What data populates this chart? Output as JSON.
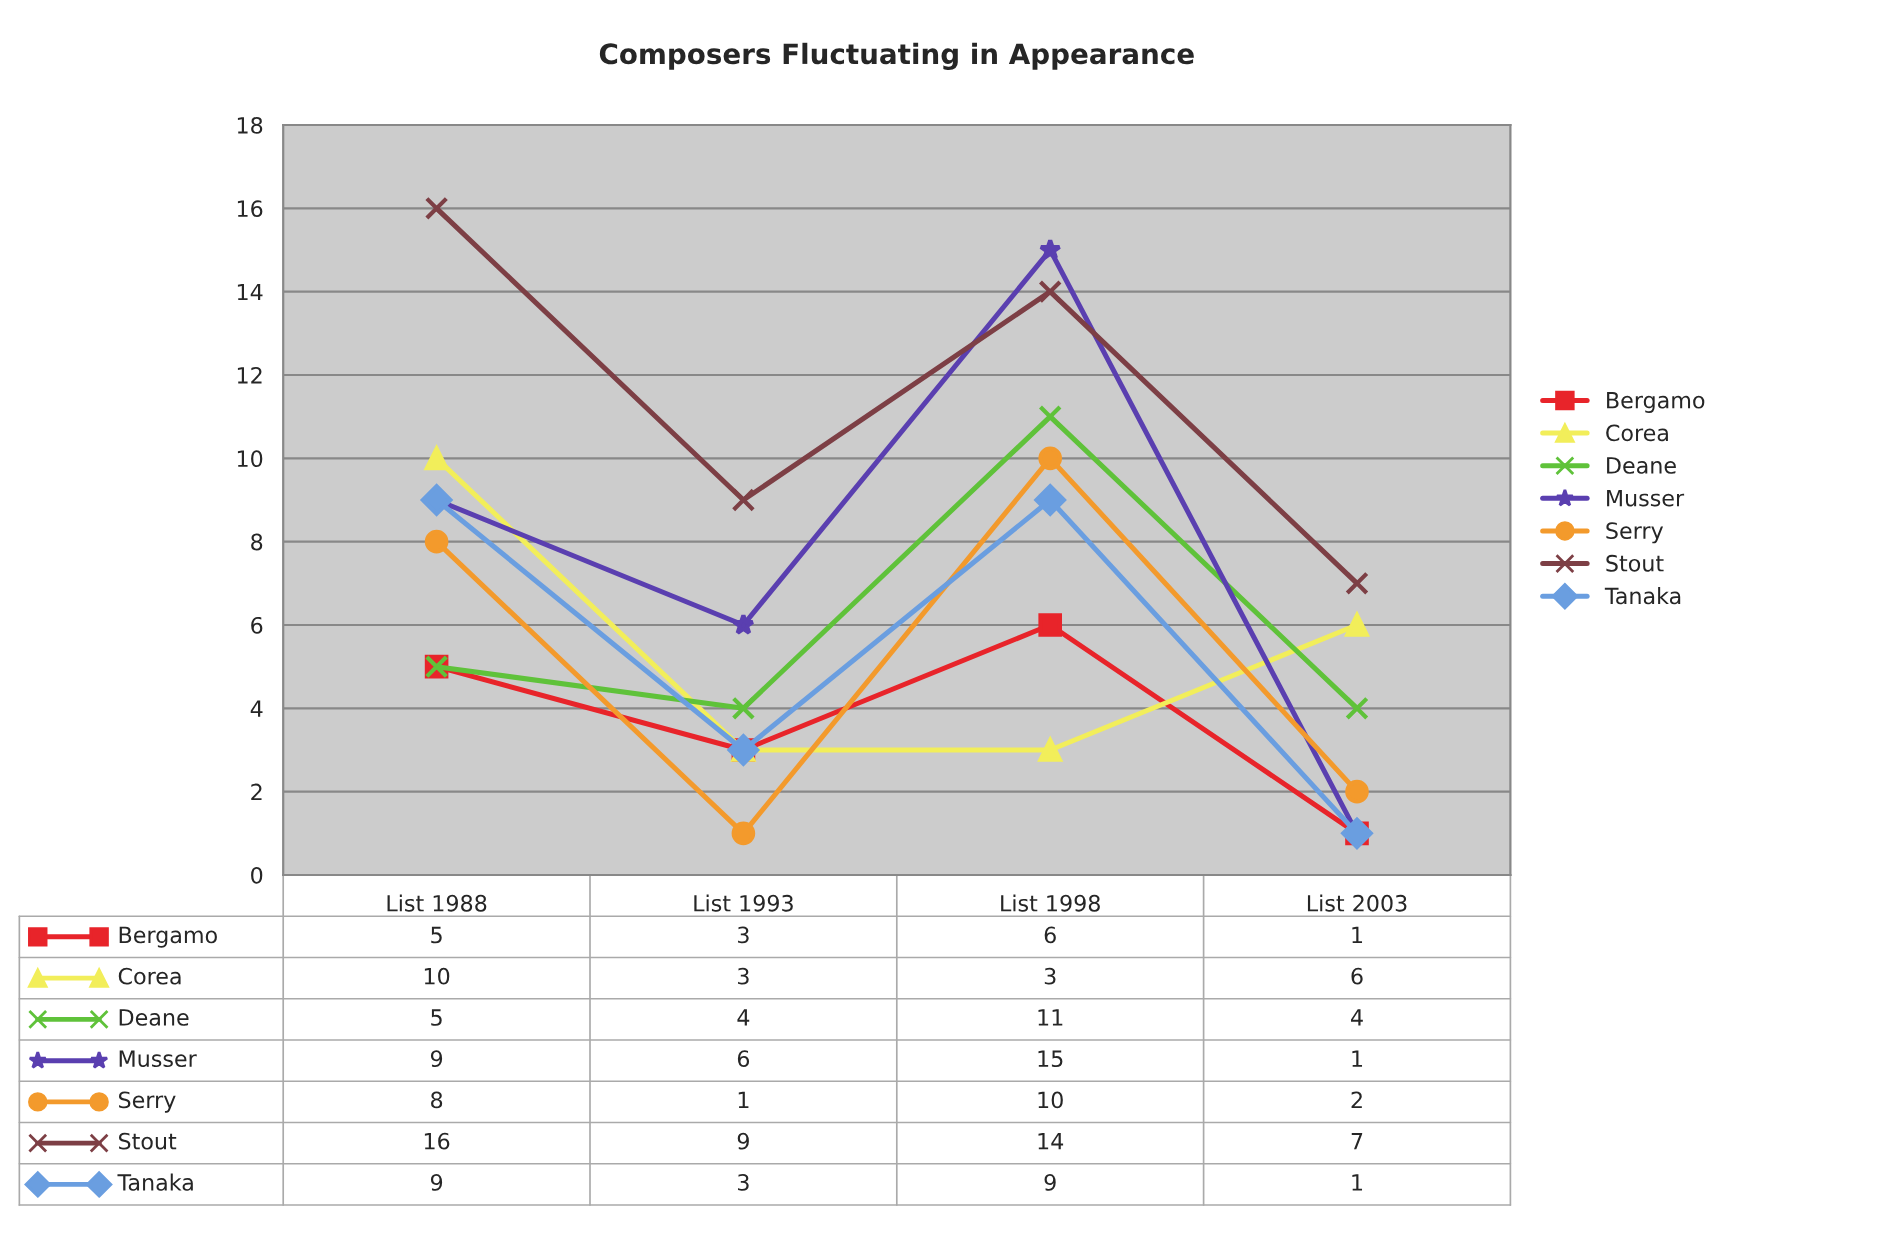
{
  "chart_data": {
    "type": "line",
    "title": "Composers Fluctuating in Appearance",
    "categories": [
      "List 1988",
      "List 1993",
      "List 1998",
      "List 2003"
    ],
    "series": [
      {
        "name": "Bergamo",
        "color": "#e8242a",
        "marker": "square",
        "values": [
          5,
          3,
          6,
          1
        ]
      },
      {
        "name": "Corea",
        "color": "#f2ee5a",
        "marker": "triangle",
        "values": [
          10,
          3,
          3,
          6
        ]
      },
      {
        "name": "Deane",
        "color": "#5fc23a",
        "marker": "cross",
        "values": [
          5,
          4,
          11,
          4
        ]
      },
      {
        "name": "Musser",
        "color": "#5a3fb0",
        "marker": "star",
        "values": [
          9,
          6,
          15,
          1
        ]
      },
      {
        "name": "Serry",
        "color": "#f39a2c",
        "marker": "circle",
        "values": [
          8,
          1,
          10,
          2
        ]
      },
      {
        "name": "Stout",
        "color": "#7d3f45",
        "marker": "cross",
        "values": [
          16,
          9,
          14,
          7
        ]
      },
      {
        "name": "Tanaka",
        "color": "#6a9ee0",
        "marker": "diamond",
        "values": [
          9,
          3,
          9,
          1
        ]
      }
    ],
    "ylim": [
      0,
      18
    ],
    "yticks": [
      0,
      2,
      4,
      6,
      8,
      10,
      12,
      14,
      16,
      18
    ],
    "grid": "y",
    "legend": "right",
    "data_labels": true
  }
}
